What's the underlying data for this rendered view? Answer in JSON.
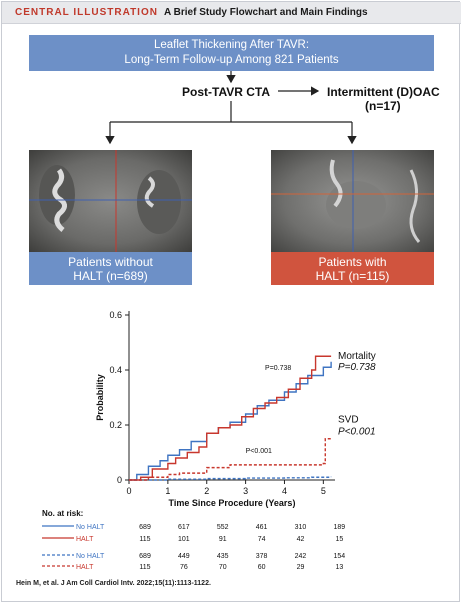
{
  "header": {
    "tag": "CENTRAL ILLUSTRATION",
    "title": "A Brief Study Flowchart and Main Findings"
  },
  "flow": {
    "top_line1": "Leaflet Thickening After TAVR:",
    "top_line2": "Long-Term Follow-up Among 821 Patients",
    "post_cta": "Post-TAVR CTA",
    "oac": "Intermittent (D)OAC",
    "oac_n": "(n=17)",
    "left_line1": "Patients without",
    "left_line2": "HALT (n=689)",
    "right_line1": "Patients with",
    "right_line2": "HALT (n=115)"
  },
  "colors": {
    "blue": "#6d90c7",
    "red": "#d0543e",
    "line_blue": "#3f74c2",
    "line_red": "#c8372d"
  },
  "chart_data": {
    "type": "line",
    "xlabel": "Time Since Procedure (Years)",
    "ylabel": "Probability",
    "xlim": [
      0,
      5.3
    ],
    "ylim": [
      0,
      0.6
    ],
    "xticks": [
      "0",
      "1",
      "2",
      "3",
      "4",
      "5"
    ],
    "yticks": [
      "0",
      "0.2",
      "0.4",
      "0.6"
    ],
    "series": [
      {
        "name": "No HALT",
        "group": "mortality",
        "style": "solid",
        "color": "#3f74c2",
        "x": [
          0,
          0.2,
          0.5,
          0.8,
          1.0,
          1.3,
          1.6,
          2.0,
          2.3,
          2.6,
          3.0,
          3.3,
          3.6,
          4.0,
          4.3,
          4.6,
          5.0,
          5.2
        ],
        "y": [
          0,
          0.02,
          0.05,
          0.07,
          0.09,
          0.11,
          0.14,
          0.17,
          0.19,
          0.21,
          0.24,
          0.27,
          0.29,
          0.32,
          0.35,
          0.38,
          0.41,
          0.43
        ]
      },
      {
        "name": "HALT",
        "group": "mortality",
        "style": "solid",
        "color": "#c8372d",
        "x": [
          0,
          0.3,
          0.6,
          1.0,
          1.2,
          1.5,
          1.8,
          2.0,
          2.3,
          2.6,
          2.9,
          3.2,
          3.5,
          3.8,
          4.1,
          4.4,
          4.7,
          4.8,
          5.2
        ],
        "y": [
          0,
          0.01,
          0.04,
          0.06,
          0.08,
          0.1,
          0.12,
          0.17,
          0.19,
          0.2,
          0.23,
          0.26,
          0.28,
          0.3,
          0.33,
          0.37,
          0.4,
          0.45,
          0.45
        ]
      },
      {
        "name": "No HALT",
        "group": "svd",
        "style": "dashed",
        "color": "#3f74c2",
        "x": [
          0,
          1.0,
          2.0,
          3.0,
          4.0,
          4.7,
          5.2
        ],
        "y": [
          0,
          0.003,
          0.005,
          0.007,
          0.008,
          0.01,
          0.012
        ]
      },
      {
        "name": "HALT",
        "group": "svd",
        "style": "dashed",
        "color": "#c8372d",
        "x": [
          0,
          0.5,
          1.0,
          1.3,
          2.0,
          2.6,
          3.0,
          4.0,
          4.5,
          5.0,
          5.05,
          5.2
        ],
        "y": [
          0,
          0.01,
          0.02,
          0.025,
          0.045,
          0.055,
          0.055,
          0.055,
          0.055,
          0.06,
          0.15,
          0.15
        ]
      }
    ],
    "annotations": [
      {
        "text": "P=0.738",
        "x": 3.5,
        "y": 0.4
      },
      {
        "text": "P<0.001",
        "x": 3.0,
        "y": 0.098
      }
    ],
    "outcome_labels": [
      {
        "name": "Mortality",
        "p": "P=0.738"
      },
      {
        "name": "SVD",
        "p": "P<0.001"
      }
    ]
  },
  "risk": {
    "title": "No. at risk:",
    "mortality": [
      {
        "label": "No HALT",
        "values": [
          "689",
          "617",
          "552",
          "461",
          "310",
          "189"
        ]
      },
      {
        "label": "HALT",
        "values": [
          "115",
          "101",
          "91",
          "74",
          "42",
          "15"
        ]
      }
    ],
    "svd": [
      {
        "label": "No HALT",
        "values": [
          "689",
          "449",
          "435",
          "378",
          "242",
          "154"
        ]
      },
      {
        "label": "HALT",
        "values": [
          "115",
          "76",
          "70",
          "60",
          "29",
          "13"
        ]
      }
    ]
  },
  "reference": "Hein M, et al. J Am Coll Cardiol Intv. 2022;15(11):1113-1122."
}
